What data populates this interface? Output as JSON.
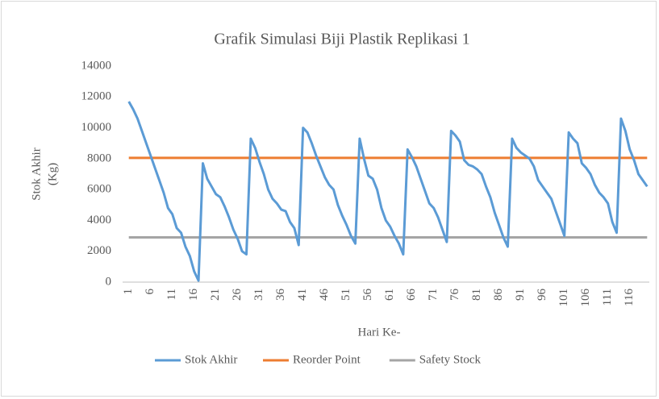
{
  "chart_data": {
    "type": "line",
    "title": "Grafik Simulasi Biji Plastik Replikasi 1",
    "xlabel": "Hari Ke-",
    "ylabel": [
      "Stok Akhir",
      "(Kg)"
    ],
    "ylim": [
      0,
      14000
    ],
    "yticks": [
      0,
      2000,
      4000,
      6000,
      8000,
      10000,
      12000,
      14000
    ],
    "grid": false,
    "legend": "bottom",
    "categories": [
      "1",
      null,
      null,
      null,
      null,
      "6",
      null,
      null,
      null,
      null,
      "11",
      null,
      null,
      null,
      null,
      "16",
      null,
      null,
      null,
      null,
      "21",
      null,
      null,
      null,
      null,
      "26",
      null,
      null,
      null,
      null,
      "31",
      null,
      null,
      null,
      null,
      "36",
      null,
      null,
      null,
      null,
      "41",
      null,
      null,
      null,
      null,
      "46",
      null,
      null,
      null,
      null,
      "51",
      null,
      null,
      null,
      null,
      "56",
      null,
      null,
      null,
      null,
      "61",
      null,
      null,
      null,
      null,
      "66",
      null,
      null,
      null,
      null,
      "71",
      null,
      null,
      null,
      null,
      "76",
      null,
      null,
      null,
      null,
      "81",
      null,
      null,
      null,
      null,
      "86",
      null,
      null,
      null,
      null,
      "91",
      null,
      null,
      null,
      null,
      "96",
      null,
      null,
      null,
      null,
      "101",
      null,
      null,
      null,
      null,
      "106",
      null,
      null,
      null,
      null,
      "111",
      null,
      null,
      null,
      null,
      "116",
      null,
      null,
      null,
      null
    ],
    "series": [
      {
        "name": "Stok Akhir",
        "color": "#5b9bd5",
        "values": [
          11700,
          11200,
          10600,
          9800,
          9000,
          8200,
          7400,
          6600,
          5800,
          4800,
          4400,
          3500,
          3200,
          2300,
          1700,
          700,
          100,
          7700,
          6700,
          6200,
          5700,
          5500,
          4900,
          4200,
          3400,
          2800,
          2000,
          1800,
          9300,
          8700,
          7800,
          7000,
          6000,
          5400,
          5100,
          4700,
          4600,
          3900,
          3500,
          2400,
          10000,
          9700,
          9000,
          8200,
          7500,
          6800,
          6300,
          6000,
          5000,
          4300,
          3700,
          3000,
          2500,
          9300,
          8000,
          6900,
          6700,
          6000,
          4800,
          4000,
          3600,
          3000,
          2500,
          1800,
          8600,
          8100,
          7500,
          6700,
          5900,
          5100,
          4800,
          4200,
          3400,
          2600,
          9800,
          9500,
          9100,
          7900,
          7600,
          7500,
          7300,
          7000,
          6200,
          5500,
          4500,
          3700,
          2900,
          2300,
          9300,
          8700,
          8400,
          8200,
          8000,
          7500,
          6600,
          6200,
          5800,
          5400,
          4600,
          3800,
          3000,
          9700,
          9300,
          9000,
          7700,
          7400,
          7000,
          6300,
          5800,
          5500,
          5100,
          3900,
          3200,
          10600,
          9800,
          8600,
          7900,
          7000,
          6600,
          6200
        ]
      },
      {
        "name": "Reorder Point",
        "color": "#ed7d31",
        "values": [
          8050,
          8050,
          8050,
          8050,
          8050,
          8050,
          8050,
          8050,
          8050,
          8050,
          8050,
          8050,
          8050,
          8050,
          8050,
          8050,
          8050,
          8050,
          8050,
          8050,
          8050,
          8050,
          8050,
          8050,
          8050,
          8050,
          8050,
          8050,
          8050,
          8050,
          8050,
          8050,
          8050,
          8050,
          8050,
          8050,
          8050,
          8050,
          8050,
          8050,
          8050,
          8050,
          8050,
          8050,
          8050,
          8050,
          8050,
          8050,
          8050,
          8050,
          8050,
          8050,
          8050,
          8050,
          8050,
          8050,
          8050,
          8050,
          8050,
          8050,
          8050,
          8050,
          8050,
          8050,
          8050,
          8050,
          8050,
          8050,
          8050,
          8050,
          8050,
          8050,
          8050,
          8050,
          8050,
          8050,
          8050,
          8050,
          8050,
          8050,
          8050,
          8050,
          8050,
          8050,
          8050,
          8050,
          8050,
          8050,
          8050,
          8050,
          8050,
          8050,
          8050,
          8050,
          8050,
          8050,
          8050,
          8050,
          8050,
          8050,
          8050,
          8050,
          8050,
          8050,
          8050,
          8050,
          8050,
          8050,
          8050,
          8050,
          8050,
          8050,
          8050,
          8050,
          8050,
          8050,
          8050,
          8050,
          8050,
          8050
        ]
      },
      {
        "name": "Safety Stock",
        "color": "#a5a5a5",
        "values": [
          2900,
          2900,
          2900,
          2900,
          2900,
          2900,
          2900,
          2900,
          2900,
          2900,
          2900,
          2900,
          2900,
          2900,
          2900,
          2900,
          2900,
          2900,
          2900,
          2900,
          2900,
          2900,
          2900,
          2900,
          2900,
          2900,
          2900,
          2900,
          2900,
          2900,
          2900,
          2900,
          2900,
          2900,
          2900,
          2900,
          2900,
          2900,
          2900,
          2900,
          2900,
          2900,
          2900,
          2900,
          2900,
          2900,
          2900,
          2900,
          2900,
          2900,
          2900,
          2900,
          2900,
          2900,
          2900,
          2900,
          2900,
          2900,
          2900,
          2900,
          2900,
          2900,
          2900,
          2900,
          2900,
          2900,
          2900,
          2900,
          2900,
          2900,
          2900,
          2900,
          2900,
          2900,
          2900,
          2900,
          2900,
          2900,
          2900,
          2900,
          2900,
          2900,
          2900,
          2900,
          2900,
          2900,
          2900,
          2900,
          2900,
          2900,
          2900,
          2900,
          2900,
          2900,
          2900,
          2900,
          2900,
          2900,
          2900,
          2900,
          2900,
          2900,
          2900,
          2900,
          2900,
          2900,
          2900,
          2900,
          2900,
          2900,
          2900,
          2900,
          2900,
          2900,
          2900,
          2900,
          2900,
          2900,
          2900,
          2900
        ]
      }
    ]
  }
}
